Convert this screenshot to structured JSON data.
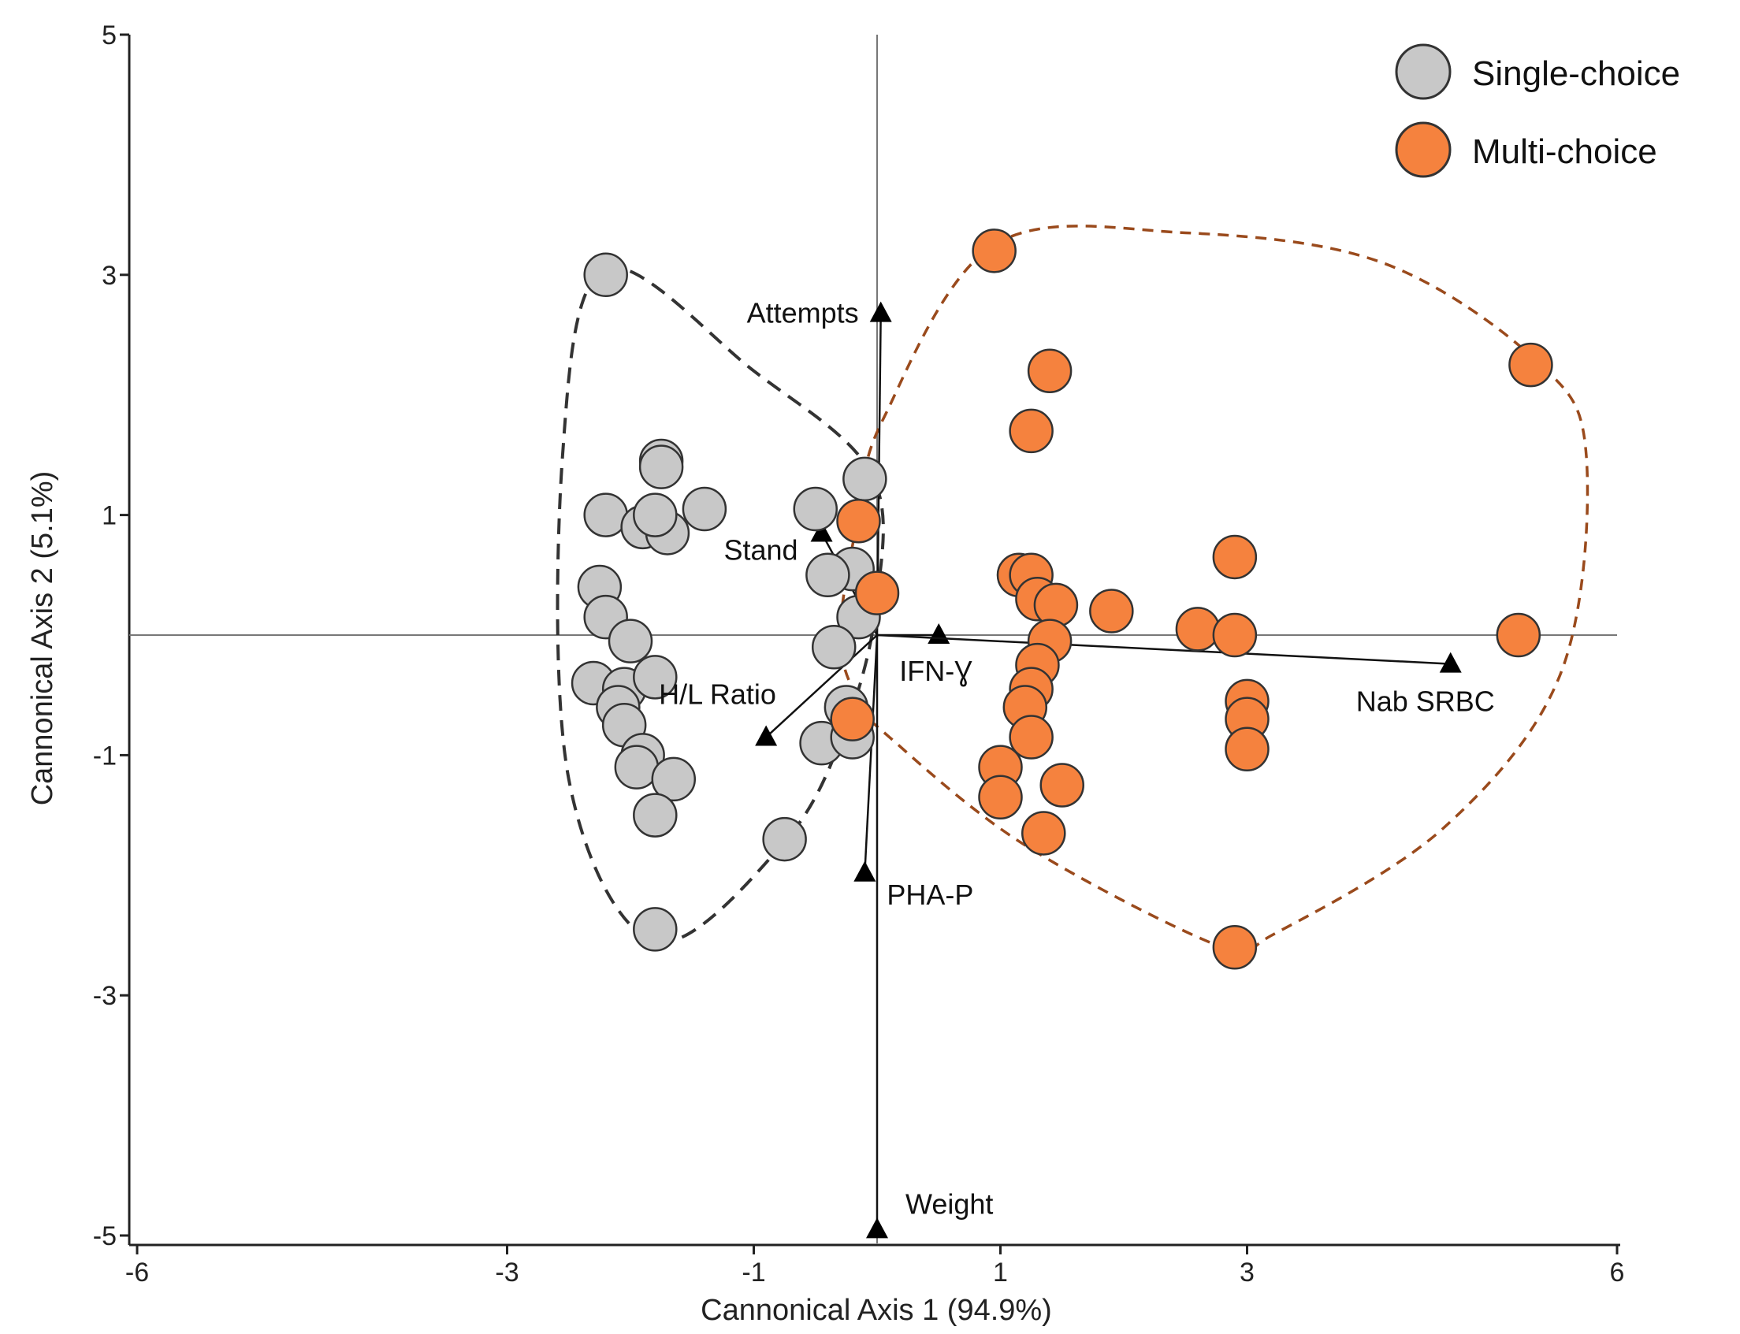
{
  "chart_data": {
    "type": "scatter",
    "title": "",
    "xlabel": "Cannonical Axis 1 (94.9%)",
    "ylabel": "Cannonical Axis 2 (5.1%)",
    "xlim": [
      -6,
      6
    ],
    "ylim": [
      -5,
      5
    ],
    "x_ticks": [
      -6,
      -3,
      -1,
      1,
      3,
      6
    ],
    "y_ticks": [
      5,
      3,
      1,
      -1,
      -3,
      -5
    ],
    "x_tick_labels": [
      "-6",
      "-3",
      "-1",
      "1",
      "3",
      "6"
    ],
    "y_tick_labels": [
      "5",
      "3",
      "1",
      "-1",
      "-3",
      "-5"
    ],
    "grid": false,
    "legend_position": "top-right",
    "colors": {
      "single_fill": "#c8c8c8",
      "multi_fill": "#f5823e",
      "single_hull": "#333333",
      "multi_hull": "#9a4a1c",
      "point_stroke": "#333333",
      "axis": "#222222",
      "guide": "#777777"
    },
    "series": [
      {
        "name": "Single-choice",
        "points": [
          [
            -2.2,
            3.0
          ],
          [
            -1.75,
            1.45
          ],
          [
            -1.75,
            1.4
          ],
          [
            -2.2,
            1.0
          ],
          [
            -1.9,
            0.9
          ],
          [
            -1.7,
            0.85
          ],
          [
            -1.8,
            1.0
          ],
          [
            -1.4,
            1.05
          ],
          [
            -2.25,
            0.4
          ],
          [
            -2.2,
            0.15
          ],
          [
            -2.0,
            -0.05
          ],
          [
            -2.3,
            -0.4
          ],
          [
            -2.05,
            -0.45
          ],
          [
            -1.8,
            -0.35
          ],
          [
            -2.1,
            -0.6
          ],
          [
            -2.05,
            -0.75
          ],
          [
            -1.9,
            -1.0
          ],
          [
            -1.95,
            -1.1
          ],
          [
            -1.65,
            -1.2
          ],
          [
            -1.8,
            -1.5
          ],
          [
            -0.75,
            -1.7
          ],
          [
            -1.8,
            -2.45
          ],
          [
            -0.5,
            1.05
          ],
          [
            -0.1,
            1.3
          ],
          [
            -0.2,
            0.55
          ],
          [
            -0.4,
            0.5
          ],
          [
            -0.15,
            0.15
          ],
          [
            -0.35,
            -0.1
          ],
          [
            -0.25,
            -0.6
          ],
          [
            -0.45,
            -0.9
          ],
          [
            -0.2,
            -0.85
          ]
        ]
      },
      {
        "name": "Multi-choice",
        "points": [
          [
            0.95,
            3.2
          ],
          [
            1.4,
            2.2
          ],
          [
            1.25,
            1.7
          ],
          [
            5.3,
            2.25
          ],
          [
            -0.15,
            0.95
          ],
          [
            0.0,
            0.35
          ],
          [
            1.15,
            0.5
          ],
          [
            1.25,
            0.5
          ],
          [
            1.3,
            0.3
          ],
          [
            1.45,
            0.25
          ],
          [
            1.9,
            0.2
          ],
          [
            2.6,
            0.05
          ],
          [
            2.9,
            0.65
          ],
          [
            2.9,
            0.0
          ],
          [
            5.2,
            0.0
          ],
          [
            1.4,
            -0.05
          ],
          [
            1.3,
            -0.25
          ],
          [
            1.25,
            -0.45
          ],
          [
            1.2,
            -0.6
          ],
          [
            1.25,
            -0.85
          ],
          [
            1.0,
            -1.1
          ],
          [
            1.0,
            -1.35
          ],
          [
            1.5,
            -1.25
          ],
          [
            1.35,
            -1.65
          ],
          [
            2.9,
            -2.6
          ],
          [
            3.0,
            -0.55
          ],
          [
            3.0,
            -0.7
          ],
          [
            3.0,
            -0.95
          ],
          [
            -0.2,
            -0.7
          ]
        ]
      }
    ],
    "vectors": [
      {
        "name": "Attempts",
        "x": 0.03,
        "y": 2.68
      },
      {
        "name": "Stand",
        "x": -0.45,
        "y": 0.85
      },
      {
        "name": "IFN-Ɣ",
        "x": 0.5,
        "y": 0.0
      },
      {
        "name": "H/L Ratio",
        "x": -0.9,
        "y": -0.85
      },
      {
        "name": "Nab SRBC",
        "x": 4.65,
        "y": -0.24
      },
      {
        "name": "PHA-P",
        "x": -0.1,
        "y": -1.98
      },
      {
        "name": "Weight",
        "x": 0.0,
        "y": -4.95
      }
    ]
  }
}
